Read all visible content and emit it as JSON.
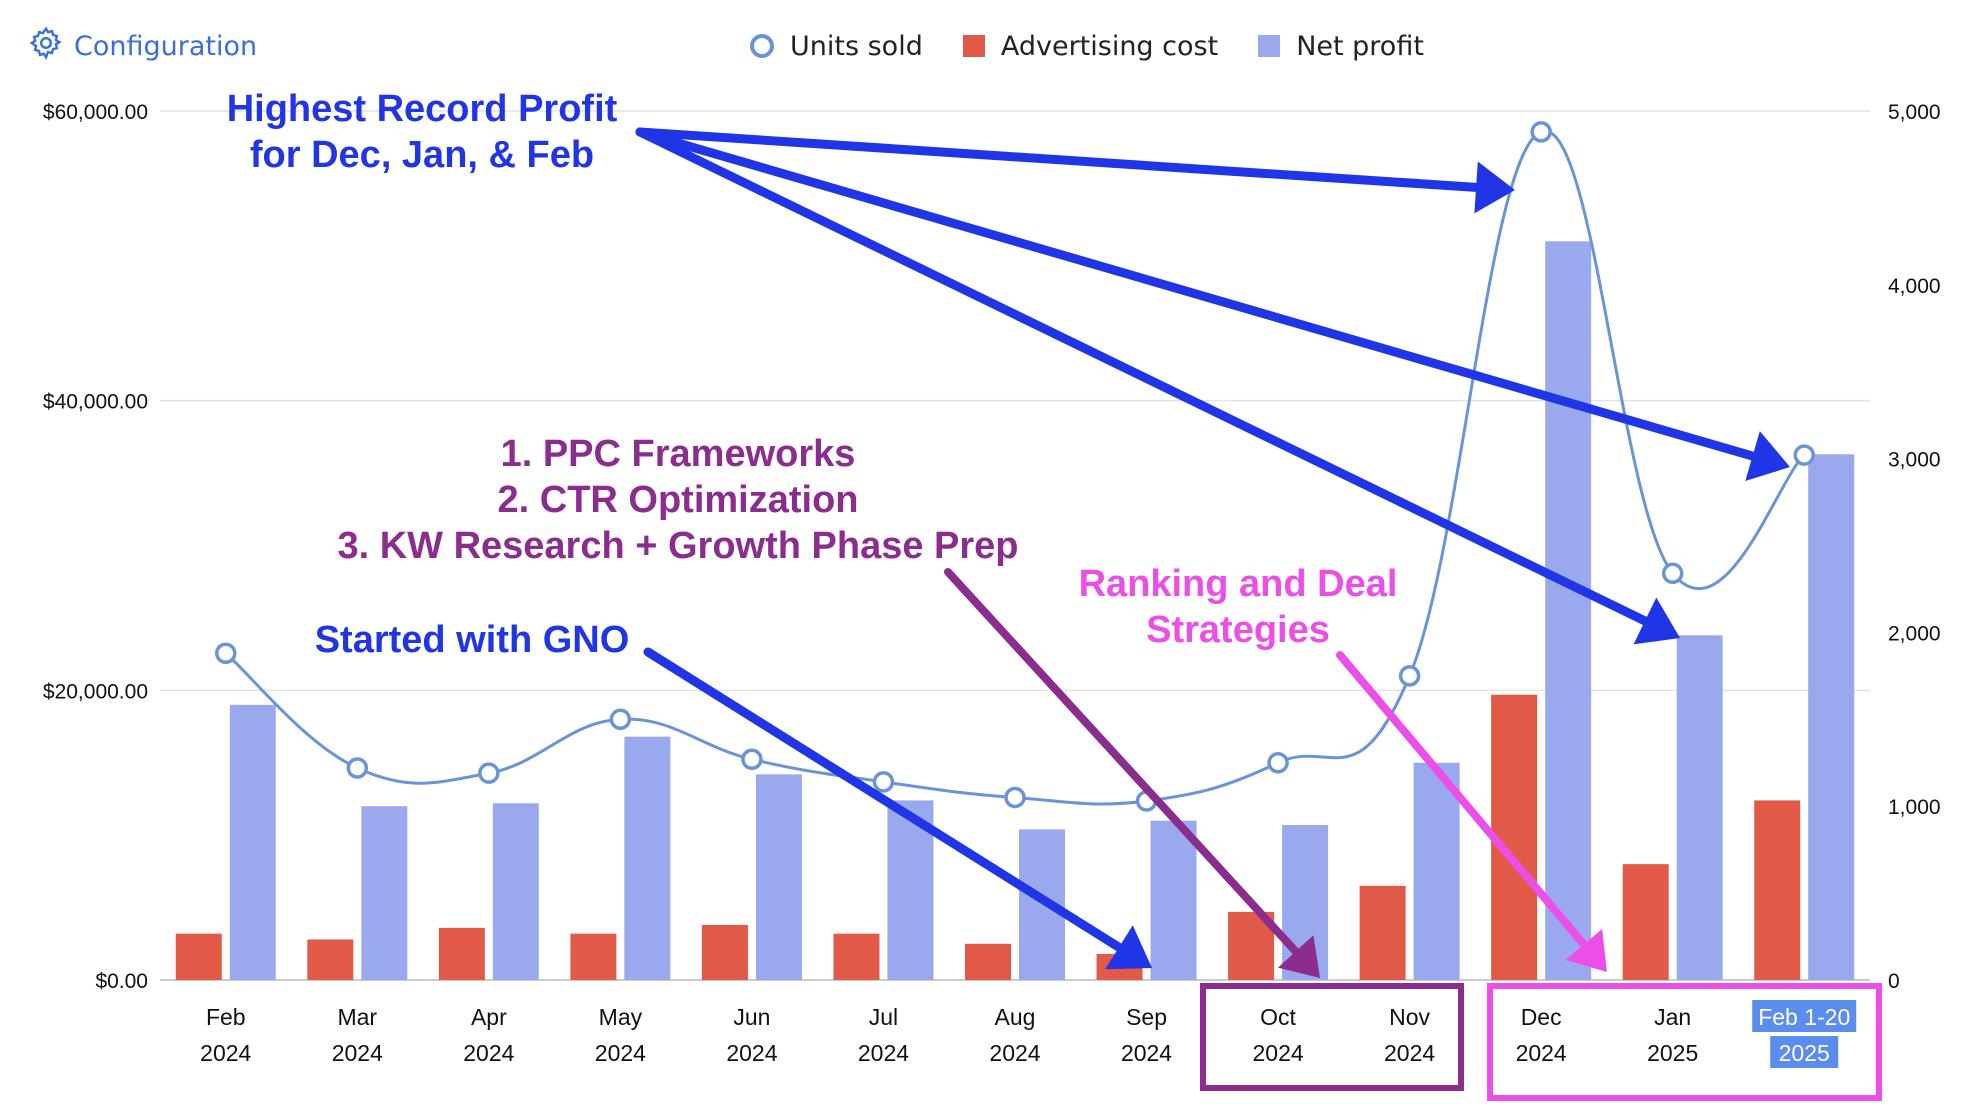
{
  "toolbar": {
    "config_label": "Configuration",
    "icon": "gear-icon"
  },
  "colors": {
    "units": "#6a94d6",
    "advertising": "#e05a47",
    "profit": "#9aa9ee",
    "blue_annotation": "#1f35e6",
    "purple_annotation": "#8b2c8f",
    "pink_annotation": "#ec4fe8",
    "link": "#3a6fd8"
  },
  "legend": {
    "units_label": "Units sold",
    "advertising_label": "Advertising cost",
    "profit_label": "Net profit"
  },
  "chart_data": {
    "type": "bar",
    "categories": [
      [
        "Feb",
        "2024"
      ],
      [
        "Mar",
        "2024"
      ],
      [
        "Apr",
        "2024"
      ],
      [
        "May",
        "2024"
      ],
      [
        "Jun",
        "2024"
      ],
      [
        "Jul",
        "2024"
      ],
      [
        "Aug",
        "2024"
      ],
      [
        "Sep",
        "2024"
      ],
      [
        "Oct",
        "2024"
      ],
      [
        "Nov",
        "2024"
      ],
      [
        "Dec",
        "2024"
      ],
      [
        "Jan",
        "2025"
      ],
      [
        "Feb 1-20",
        "2025"
      ]
    ],
    "highlighted_category": 12,
    "series": [
      {
        "name": "Advertising cost",
        "type": "bar",
        "axis": "left",
        "values": [
          3200,
          2800,
          3600,
          3200,
          3800,
          3200,
          2500,
          1800,
          4700,
          6500,
          19700,
          8000,
          12400
        ]
      },
      {
        "name": "Net profit",
        "type": "bar",
        "axis": "left",
        "values": [
          19000,
          12000,
          12200,
          16800,
          14200,
          12400,
          10400,
          11000,
          10700,
          15000,
          51000,
          23800,
          36300
        ]
      },
      {
        "name": "Units sold",
        "type": "line",
        "axis": "right",
        "values": [
          1880,
          1220,
          1190,
          1500,
          1270,
          1140,
          1050,
          1030,
          1250,
          1750,
          4880,
          2340,
          3020
        ]
      }
    ],
    "y_left": {
      "min": 0,
      "max": 60000,
      "ticks": [
        "$0.00",
        "$20,000.00",
        "$40,000.00",
        "$60,000.00"
      ]
    },
    "y_right": {
      "min": 0,
      "max": 5000,
      "ticks": [
        "0",
        "1,000",
        "2,000",
        "3,000",
        "4,000",
        "5,000"
      ]
    },
    "grid": true,
    "legend_position": "top"
  },
  "annotations": {
    "highest_profit": [
      "Highest Record Profit",
      "for Dec, Jan, & Feb"
    ],
    "frameworks": [
      "1. PPC Frameworks",
      "2. CTR Optimization",
      "3. KW Research + Growth Phase Prep"
    ],
    "ranking": [
      "Ranking and Deal",
      "Strategies"
    ],
    "gno": "Started with GNO"
  }
}
